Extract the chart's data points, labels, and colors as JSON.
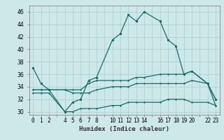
{
  "title": "",
  "xlabel": "Humidex (Indice chaleur)",
  "xlim": [
    -0.5,
    23.5
  ],
  "ylim": [
    29.5,
    47
  ],
  "yticks": [
    30,
    32,
    34,
    36,
    38,
    40,
    42,
    44,
    46
  ],
  "xtick_labels": [
    "0",
    "1",
    "2",
    "",
    "4",
    "5",
    "6",
    "7",
    "8",
    "",
    "10",
    "11",
    "12",
    "13",
    "14",
    "",
    "16",
    "17",
    "18",
    "19",
    "20",
    "",
    "22",
    "23"
  ],
  "xtick_positions": [
    0,
    1,
    2,
    3,
    4,
    5,
    6,
    7,
    8,
    9,
    10,
    11,
    12,
    13,
    14,
    15,
    16,
    17,
    18,
    19,
    20,
    21,
    22,
    23
  ],
  "bg_color": "#cce8e8",
  "grid_color": "#aacccc",
  "line_color": "#1a6b6b",
  "curve1_x": [
    0,
    1,
    2,
    4,
    5,
    6,
    7,
    8,
    10,
    11,
    12,
    13,
    14,
    16,
    17,
    18,
    19,
    20,
    22,
    23
  ],
  "curve1_y": [
    37,
    34.5,
    33.5,
    30,
    31.5,
    32,
    35,
    35.5,
    41.5,
    42.5,
    45.5,
    44.5,
    46,
    44.5,
    41.5,
    40.5,
    36,
    36.5,
    34.5,
    32
  ],
  "curve2_x": [
    0,
    1,
    2,
    4,
    5,
    6,
    7,
    8,
    10,
    11,
    12,
    13,
    14,
    16,
    17,
    18,
    19,
    20,
    22,
    23
  ],
  "curve2_y": [
    33.5,
    33.5,
    33.5,
    33.5,
    33.5,
    33.5,
    34.5,
    35,
    35,
    35,
    35,
    35.5,
    35.5,
    36,
    36,
    36,
    36,
    36.5,
    34.5,
    32
  ],
  "curve3_x": [
    0,
    1,
    2,
    4,
    5,
    6,
    7,
    8,
    10,
    11,
    12,
    13,
    14,
    16,
    17,
    18,
    19,
    20,
    22,
    23
  ],
  "curve3_y": [
    33.5,
    33.5,
    33.5,
    33.5,
    33,
    33,
    33,
    33.5,
    34,
    34,
    34,
    34.5,
    34.5,
    34.5,
    34.5,
    34.5,
    34.5,
    35,
    34.5,
    31
  ],
  "curve4_x": [
    0,
    1,
    2,
    4,
    5,
    6,
    7,
    8,
    10,
    11,
    12,
    13,
    14,
    16,
    17,
    18,
    19,
    20,
    22,
    23
  ],
  "curve4_y": [
    33,
    33,
    33,
    30,
    30,
    30.5,
    30.5,
    30.5,
    31,
    31,
    31.5,
    31.5,
    31.5,
    31.5,
    32,
    32,
    32,
    31.5,
    31.5,
    31
  ],
  "lw": 0.9,
  "ms": 2.0
}
